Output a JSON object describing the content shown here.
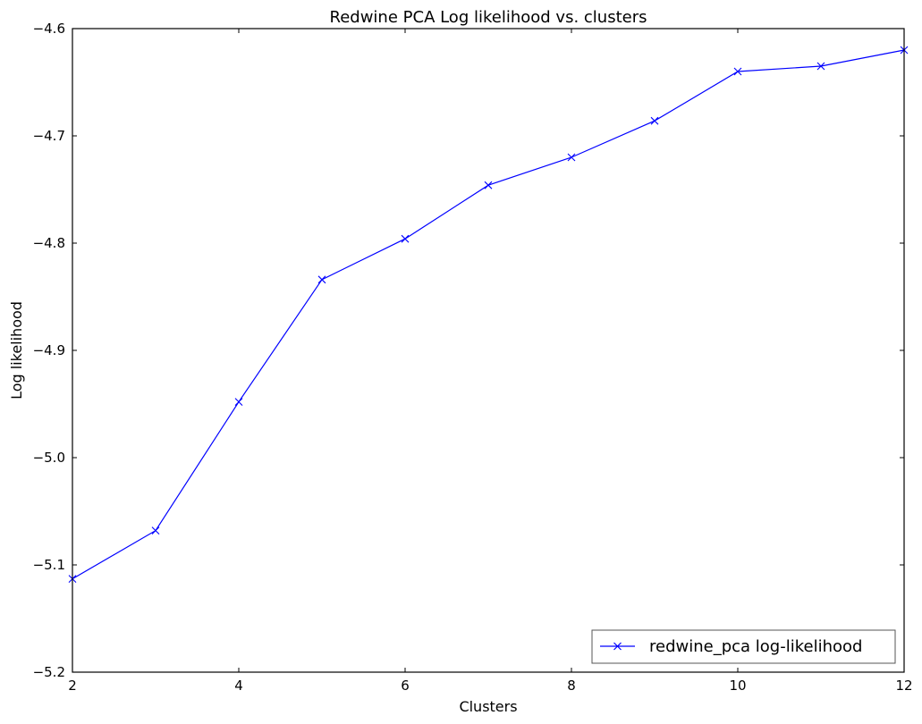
{
  "chart_data": {
    "type": "line",
    "title": "Redwine PCA Log likelihood vs. clusters",
    "xlabel": "Clusters",
    "ylabel": "Log likelihood",
    "xlim": [
      2,
      12
    ],
    "ylim": [
      -5.2,
      -4.6
    ],
    "x_ticks": [
      2,
      4,
      6,
      8,
      10,
      12
    ],
    "x_tick_labels": [
      "2",
      "4",
      "6",
      "8",
      "10",
      "12"
    ],
    "y_ticks": [
      -5.2,
      -5.1,
      -5.0,
      -4.9,
      -4.8,
      -4.7,
      -4.6
    ],
    "y_tick_labels": [
      "−5.2",
      "−5.1",
      "−5.0",
      "−4.9",
      "−4.8",
      "−4.7",
      "−4.6"
    ],
    "grid": false,
    "legend_position": "lower-right",
    "series": [
      {
        "name": "redwine_pca log-likelihood",
        "color": "#0000ff",
        "marker": "x",
        "x": [
          2,
          3,
          4,
          5,
          6,
          7,
          8,
          9,
          10,
          11,
          12
        ],
        "y": [
          -5.113,
          -5.068,
          -4.948,
          -4.834,
          -4.796,
          -4.746,
          -4.72,
          -4.686,
          -4.64,
          -4.635,
          -4.62
        ]
      }
    ]
  }
}
